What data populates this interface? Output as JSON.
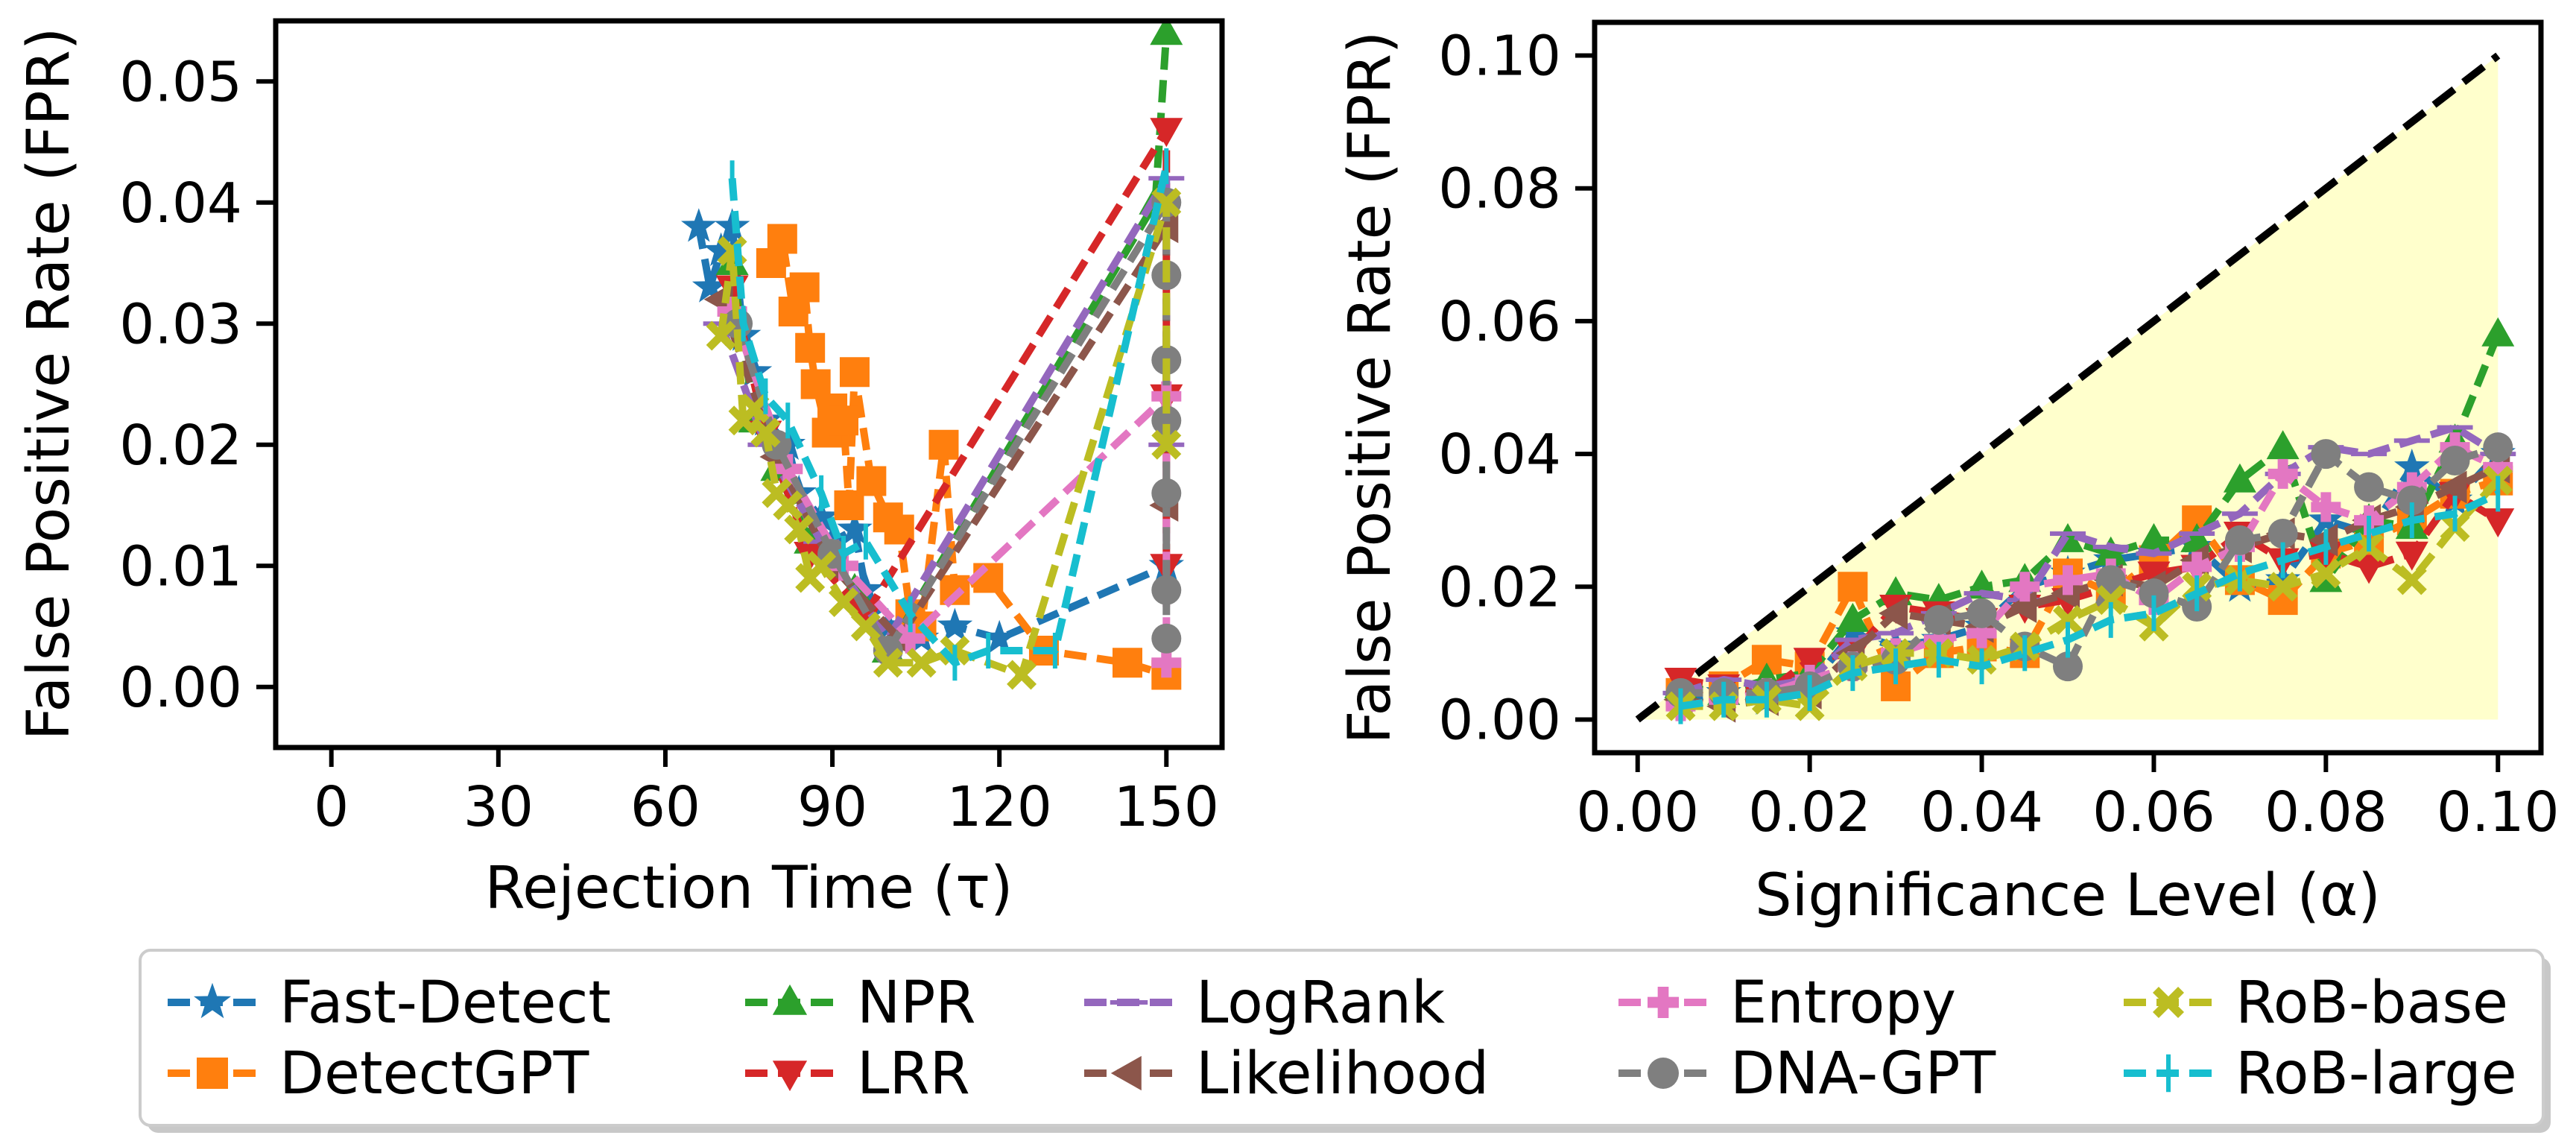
{
  "chart_data": [
    {
      "type": "line",
      "xlabel": "Rejection Time (τ)",
      "ylabel": "False Positive Rate (FPR)",
      "xlim": [
        -10,
        160
      ],
      "ylim": [
        -0.005,
        0.055
      ],
      "xticks": [
        0,
        30,
        60,
        90,
        120,
        150
      ],
      "yticks": [
        0.0,
        0.01,
        0.02,
        0.03,
        0.04,
        0.05
      ],
      "xtick_labels": [
        "0",
        "30",
        "60",
        "90",
        "120",
        "150"
      ],
      "ytick_labels": [
        "0.00",
        "0.01",
        "0.02",
        "0.03",
        "0.04",
        "0.05"
      ],
      "grid": false,
      "note_series_order": "x as rejection time, y as FPR; points approximate",
      "series": [
        {
          "name": "Fast-Detect",
          "points": [
            [
              66,
              0.038
            ],
            [
              68,
              0.033
            ],
            [
              70,
              0.036
            ],
            [
              72,
              0.038
            ],
            [
              74,
              0.029
            ],
            [
              76,
              0.026
            ],
            [
              78,
              0.022
            ],
            [
              82,
              0.02
            ],
            [
              84,
              0.016
            ],
            [
              88,
              0.014
            ],
            [
              90,
              0.012
            ],
            [
              94,
              0.013
            ],
            [
              96,
              0.008
            ],
            [
              100,
              0.005
            ],
            [
              106,
              0.004
            ],
            [
              112,
              0.005
            ],
            [
              120,
              0.004
            ],
            [
              150,
              0.01
            ]
          ]
        },
        {
          "name": "DetectGPT",
          "points": [
            [
              79,
              0.035
            ],
            [
              81,
              0.037
            ],
            [
              83,
              0.031
            ],
            [
              85,
              0.033
            ],
            [
              86,
              0.028
            ],
            [
              87,
              0.025
            ],
            [
              89,
              0.021
            ],
            [
              90,
              0.023
            ],
            [
              92,
              0.022
            ],
            [
              93,
              0.015
            ],
            [
              94,
              0.026
            ],
            [
              97,
              0.017
            ],
            [
              100,
              0.014
            ],
            [
              102,
              0.013
            ],
            [
              104,
              0.006
            ],
            [
              106,
              0.005
            ],
            [
              110,
              0.02
            ],
            [
              112,
              0.008
            ],
            [
              118,
              0.009
            ],
            [
              128,
              0.003
            ],
            [
              143,
              0.002
            ],
            [
              150,
              0.001
            ]
          ]
        },
        {
          "name": "NPR",
          "points": [
            [
              72,
              0.035
            ],
            [
              76,
              0.022
            ],
            [
              80,
              0.018
            ],
            [
              86,
              0.012
            ],
            [
              94,
              0.008
            ],
            [
              100,
              0.003
            ],
            [
              148,
              0.04
            ],
            [
              150,
              0.054
            ]
          ]
        },
        {
          "name": "LRR",
          "points": [
            [
              72,
              0.033
            ],
            [
              78,
              0.021
            ],
            [
              86,
              0.011
            ],
            [
              96,
              0.006
            ],
            [
              150,
              0.046
            ],
            [
              150,
              0.024
            ],
            [
              150,
              0.01
            ]
          ]
        },
        {
          "name": "LogRank",
          "points": [
            [
              70,
              0.03
            ],
            [
              78,
              0.02
            ],
            [
              88,
              0.012
            ],
            [
              100,
              0.004
            ],
            [
              150,
              0.042
            ],
            [
              150,
              0.02
            ]
          ]
        },
        {
          "name": "Likelihood",
          "points": [
            [
              70,
              0.032
            ],
            [
              80,
              0.019
            ],
            [
              90,
              0.01
            ],
            [
              102,
              0.004
            ],
            [
              150,
              0.038
            ],
            [
              150,
              0.015
            ]
          ]
        },
        {
          "name": "Entropy",
          "points": [
            [
              72,
              0.031
            ],
            [
              82,
              0.018
            ],
            [
              92,
              0.01
            ],
            [
              104,
              0.004
            ],
            [
              150,
              0.024
            ],
            [
              150,
              0.002
            ]
          ]
        },
        {
          "name": "DNA-GPT",
          "points": [
            [
              73,
              0.03
            ],
            [
              80,
              0.02
            ],
            [
              90,
              0.011
            ],
            [
              100,
              0.003
            ],
            [
              150,
              0.04
            ],
            [
              150,
              0.034
            ],
            [
              150,
              0.027
            ],
            [
              150,
              0.022
            ],
            [
              150,
              0.016
            ],
            [
              150,
              0.008
            ],
            [
              150,
              0.004
            ]
          ]
        },
        {
          "name": "RoB-base",
          "points": [
            [
              70,
              0.029
            ],
            [
              72,
              0.036
            ],
            [
              74,
              0.022
            ],
            [
              76,
              0.023
            ],
            [
              78,
              0.021
            ],
            [
              80,
              0.016
            ],
            [
              82,
              0.015
            ],
            [
              84,
              0.013
            ],
            [
              86,
              0.009
            ],
            [
              88,
              0.01
            ],
            [
              92,
              0.007
            ],
            [
              96,
              0.005
            ],
            [
              100,
              0.002
            ],
            [
              106,
              0.002
            ],
            [
              112,
              0.003
            ],
            [
              124,
              0.001
            ],
            [
              150,
              0.04
            ],
            [
              150,
              0.02
            ]
          ]
        },
        {
          "name": "RoB-large",
          "points": [
            [
              72,
              0.042
            ],
            [
              74,
              0.03
            ],
            [
              78,
              0.024
            ],
            [
              82,
              0.022
            ],
            [
              88,
              0.016
            ],
            [
              92,
              0.011
            ],
            [
              96,
              0.012
            ],
            [
              104,
              0.006
            ],
            [
              112,
              0.002
            ],
            [
              118,
              0.003
            ],
            [
              130,
              0.003
            ],
            [
              150,
              0.043
            ]
          ]
        }
      ]
    },
    {
      "type": "line",
      "xlabel": "Significance Level (α)",
      "ylabel": "False Positive Rate (FPR)",
      "xlim": [
        -0.005,
        0.105
      ],
      "ylim": [
        -0.005,
        0.105
      ],
      "xticks": [
        0.0,
        0.02,
        0.04,
        0.06,
        0.08,
        0.1
      ],
      "yticks": [
        0.0,
        0.02,
        0.04,
        0.06,
        0.08,
        0.1
      ],
      "xtick_labels": [
        "0.00",
        "0.02",
        "0.04",
        "0.06",
        "0.08",
        "0.10"
      ],
      "ytick_labels": [
        "0.00",
        "0.02",
        "0.04",
        "0.06",
        "0.08",
        "0.10"
      ],
      "grid": false,
      "reference_line": [
        [
          0,
          0
        ],
        [
          0.1,
          0.1
        ]
      ],
      "shaded_region": [
        [
          0,
          0
        ],
        [
          0.1,
          0.1
        ],
        [
          0.1,
          0
        ]
      ],
      "x": [
        0.005,
        0.01,
        0.015,
        0.02,
        0.025,
        0.03,
        0.035,
        0.04,
        0.045,
        0.05,
        0.055,
        0.06,
        0.065,
        0.07,
        0.075,
        0.08,
        0.085,
        0.09,
        0.095,
        0.1
      ],
      "series": [
        {
          "name": "Fast-Detect",
          "values": [
            0.003,
            0.004,
            0.003,
            0.005,
            0.013,
            0.011,
            0.012,
            0.014,
            0.02,
            0.022,
            0.024,
            0.025,
            0.026,
            0.02,
            0.021,
            0.03,
            0.028,
            0.038,
            0.033,
            0.04
          ]
        },
        {
          "name": "DetectGPT",
          "values": [
            0.004,
            0.005,
            0.009,
            0.008,
            0.02,
            0.005,
            0.01,
            0.011,
            0.01,
            0.022,
            0.019,
            0.024,
            0.03,
            0.021,
            0.018,
            0.025,
            0.027,
            0.03,
            0.034,
            0.036
          ]
        },
        {
          "name": "NPR",
          "values": [
            0.005,
            0.004,
            0.006,
            0.007,
            0.015,
            0.019,
            0.018,
            0.02,
            0.021,
            0.027,
            0.025,
            0.027,
            0.027,
            0.036,
            0.041,
            0.021,
            0.03,
            0.029,
            0.042,
            0.058
          ]
        },
        {
          "name": "LRR",
          "values": [
            0.006,
            0.005,
            0.004,
            0.009,
            0.01,
            0.017,
            0.016,
            0.015,
            0.017,
            0.018,
            0.02,
            0.022,
            0.023,
            0.028,
            0.024,
            0.025,
            0.023,
            0.025,
            0.034,
            0.03
          ]
        },
        {
          "name": "LogRank",
          "values": [
            0.004,
            0.006,
            0.005,
            0.006,
            0.012,
            0.013,
            0.016,
            0.019,
            0.018,
            0.028,
            0.026,
            0.025,
            0.028,
            0.031,
            0.037,
            0.041,
            0.04,
            0.042,
            0.044,
            0.04
          ]
        },
        {
          "name": "Likelihood",
          "values": [
            0.003,
            0.002,
            0.003,
            0.004,
            0.01,
            0.016,
            0.015,
            0.014,
            0.017,
            0.019,
            0.021,
            0.02,
            0.024,
            0.026,
            0.028,
            0.027,
            0.03,
            0.032,
            0.035,
            0.038
          ]
        },
        {
          "name": "Entropy",
          "values": [
            0.002,
            0.003,
            0.004,
            0.006,
            0.008,
            0.01,
            0.012,
            0.013,
            0.02,
            0.021,
            0.022,
            0.018,
            0.023,
            0.026,
            0.037,
            0.032,
            0.03,
            0.035,
            0.041,
            0.038
          ]
        },
        {
          "name": "DNA-GPT",
          "values": [
            0.004,
            0.004,
            0.004,
            0.005,
            0.008,
            0.009,
            0.015,
            0.016,
            0.011,
            0.008,
            0.021,
            0.019,
            0.017,
            0.027,
            0.028,
            0.04,
            0.035,
            0.033,
            0.039,
            0.041
          ]
        },
        {
          "name": "RoB-base",
          "values": [
            0.002,
            0.002,
            0.003,
            0.002,
            0.008,
            0.01,
            0.01,
            0.009,
            0.011,
            0.015,
            0.018,
            0.014,
            0.02,
            0.021,
            0.02,
            0.022,
            0.026,
            0.021,
            0.029,
            0.036
          ]
        },
        {
          "name": "RoB-large",
          "values": [
            0.002,
            0.003,
            0.003,
            0.004,
            0.007,
            0.008,
            0.009,
            0.008,
            0.01,
            0.012,
            0.015,
            0.016,
            0.019,
            0.022,
            0.024,
            0.026,
            0.028,
            0.03,
            0.031,
            0.034
          ]
        }
      ]
    }
  ],
  "legend": {
    "placement": "bottom",
    "entries": [
      {
        "name": "Fast-Detect",
        "color": "#1f77b4",
        "marker": "star"
      },
      {
        "name": "DetectGPT",
        "color": "#ff7f0e",
        "marker": "square"
      },
      {
        "name": "NPR",
        "color": "#2ca02c",
        "marker": "triangle-up"
      },
      {
        "name": "LRR",
        "color": "#d62728",
        "marker": "triangle-down"
      },
      {
        "name": "LogRank",
        "color": "#9467bd",
        "marker": "hline"
      },
      {
        "name": "Likelihood",
        "color": "#8c564b",
        "marker": "triangle-left"
      },
      {
        "name": "Entropy",
        "color": "#e377c2",
        "marker": "plus"
      },
      {
        "name": "DNA-GPT",
        "color": "#7f7f7f",
        "marker": "circle"
      },
      {
        "name": "RoB-base",
        "color": "#bcbd22",
        "marker": "x"
      },
      {
        "name": "RoB-large",
        "color": "#17becf",
        "marker": "vline"
      }
    ]
  },
  "colors": {
    "reference_line": "#000000",
    "shaded_region": "#ffffcc"
  }
}
